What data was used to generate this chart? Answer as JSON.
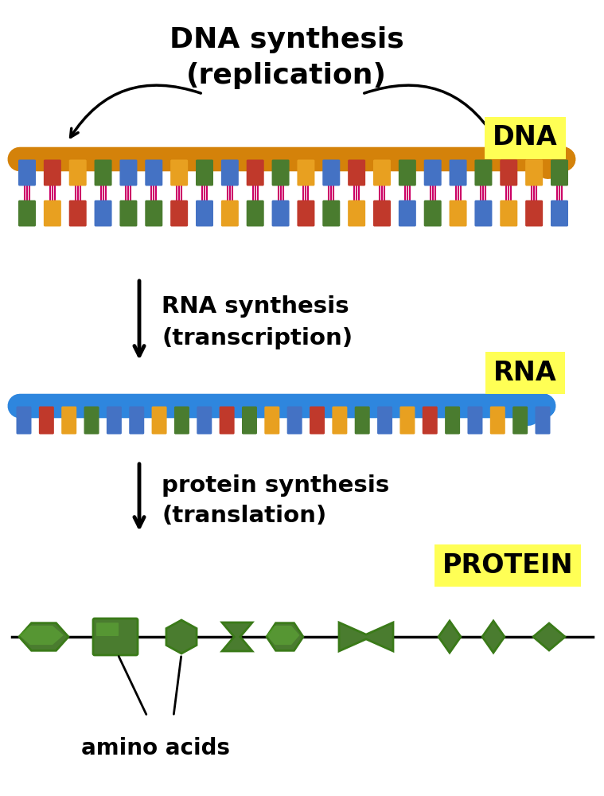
{
  "bg_color": "#ffffff",
  "dna_colors": [
    "#4472c4",
    "#c0392b",
    "#e8a020",
    "#4a7c2f"
  ],
  "dna_strand_color": "#d4820a",
  "rna_strand_color": "#2e86de",
  "rna_colors": [
    "#4472c4",
    "#c0392b",
    "#e8a020",
    "#4a7c2f"
  ],
  "protein_color": "#4a7c2f",
  "protein_dark": "#2d5a1a",
  "label_bg": "#ffff55",
  "arrow_color": "#111111",
  "connector_color": "#cc0066",
  "title1a": "DNA synthesis",
  "title1b": "(replication)",
  "title2a": "RNA synthesis",
  "title2b": "(transcription)",
  "title3a": "protein synthesis",
  "title3b": "(translation)",
  "label_dna": "DNA",
  "label_rna": "RNA",
  "label_protein": "PROTEIN",
  "label_amino": "amino acids"
}
